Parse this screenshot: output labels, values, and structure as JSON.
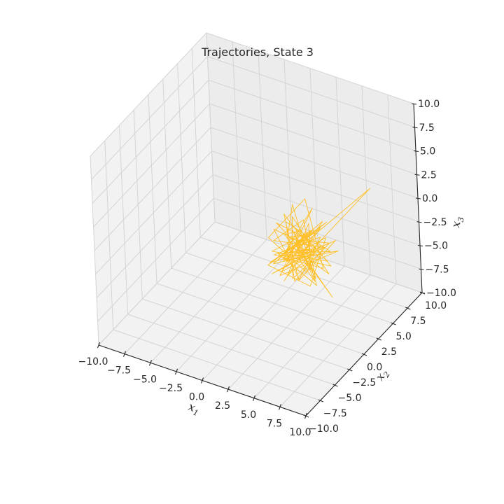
{
  "chart_data": {
    "type": "line3d",
    "title": "Trajectories, State 3",
    "xlabel": "x",
    "xlabel_sub": "1",
    "ylabel": "x",
    "ylabel_sub": "2",
    "zlabel": "x",
    "zlabel_sub": "3",
    "xlim": [
      -10,
      10
    ],
    "ylim": [
      -10,
      10
    ],
    "zlim": [
      -10,
      10
    ],
    "ticks": [
      -10,
      -7.5,
      -5,
      -2.5,
      0,
      2.5,
      5,
      7.5,
      10
    ],
    "tick_labels": [
      "−10.0",
      "−7.5",
      "−5.0",
      "−2.5",
      "0.0",
      "2.5",
      "5.0",
      "7.5",
      "10.0"
    ],
    "grid": true,
    "series": [
      {
        "color": "#ffbf24",
        "points": [
          [
            1.4,
            2.1,
            -3.9
          ],
          [
            2.6,
            1.0,
            -2.0
          ],
          [
            0.8,
            2.9,
            -5.2
          ],
          [
            3.5,
            3.4,
            -1.5
          ],
          [
            1.9,
            0.6,
            -4.7
          ],
          [
            4.2,
            2.3,
            -3.1
          ],
          [
            0.5,
            3.8,
            -1.2
          ],
          [
            2.9,
            1.7,
            -6.0
          ],
          [
            3.8,
            4.1,
            -2.6
          ],
          [
            1.1,
            0.9,
            -3.4
          ],
          [
            4.6,
            3.0,
            -4.9
          ],
          [
            2.2,
            4.5,
            0.6
          ],
          [
            0.3,
            1.4,
            -2.2
          ],
          [
            3.2,
            2.6,
            -5.6
          ],
          [
            4.9,
            1.2,
            -1.9
          ],
          [
            1.6,
            3.6,
            -4.1
          ],
          [
            2.7,
            0.2,
            -2.9
          ],
          [
            5.3,
            4.4,
            -3.7
          ],
          [
            0.9,
            2.0,
            -6.4
          ],
          [
            3.6,
            3.3,
            0.9
          ],
          [
            2.0,
            1.1,
            -3.0
          ],
          [
            4.3,
            4.8,
            -4.4
          ],
          [
            1.3,
            2.7,
            -1.0
          ],
          [
            3.1,
            0.7,
            -5.3
          ],
          [
            5.0,
            3.5,
            -2.4
          ],
          [
            0.6,
            4.0,
            -3.9
          ],
          [
            2.5,
            1.9,
            1.8
          ],
          [
            4.0,
            2.8,
            -6.8
          ],
          [
            1.8,
            0.4,
            -2.7
          ],
          [
            3.9,
            4.6,
            -4.0
          ],
          [
            0.2,
            2.4,
            -3.2
          ],
          [
            2.8,
            3.1,
            -0.5
          ],
          [
            4.7,
            1.5,
            -5.0
          ],
          [
            1.5,
            3.9,
            -3.6
          ],
          [
            3.4,
            0.9,
            -2.1
          ],
          [
            5.6,
            2.2,
            -4.6
          ],
          [
            1.0,
            4.3,
            -1.6
          ],
          [
            2.4,
            1.6,
            -5.9
          ],
          [
            4.4,
            3.7,
            -3.3
          ],
          [
            0.7,
            0.8,
            -4.3
          ],
          [
            3.0,
            4.9,
            -2.8
          ],
          [
            4.8,
            2.5,
            -0.2
          ],
          [
            1.7,
            1.3,
            -6.2
          ],
          [
            2.9,
            3.6,
            -3.5
          ],
          [
            0.4,
            2.2,
            -1.8
          ],
          [
            3.7,
            0.5,
            -4.8
          ],
          [
            5.2,
            4.2,
            -2.5
          ],
          [
            1.2,
            3.0,
            -5.4
          ],
          [
            2.3,
            1.8,
            -3.0
          ],
          [
            4.1,
            4.7,
            -1.3
          ],
          [
            0.8,
            0.3,
            -4.2
          ],
          [
            3.3,
            2.9,
            -7.2
          ],
          [
            4.5,
            3.8,
            -2.2
          ],
          [
            1.9,
            1.0,
            -3.8
          ],
          [
            7.6,
            6.2,
            2.6
          ],
          [
            3.5,
            2.4,
            -3.4
          ],
          [
            1.4,
            3.2,
            -4.5
          ],
          [
            2.6,
            0.6,
            -1.4
          ],
          [
            4.3,
            2.0,
            -5.7
          ],
          [
            0.9,
            4.4,
            -3.1
          ],
          [
            3.8,
            1.4,
            -2.6
          ],
          [
            2.1,
            3.5,
            -4.9
          ],
          [
            4.9,
            2.7,
            0.4
          ],
          [
            1.6,
            0.7,
            -3.6
          ],
          [
            2.8,
            4.1,
            -2.3
          ],
          [
            0.5,
            1.7,
            -5.1
          ],
          [
            3.6,
            3.2,
            -3.9
          ],
          [
            5.1,
            0.9,
            -1.7
          ],
          [
            1.3,
            2.6,
            -6.6
          ],
          [
            2.4,
            4.6,
            -2.0
          ],
          [
            4.2,
            1.6,
            -4.3
          ],
          [
            0.7,
            3.4,
            -3.0
          ],
          [
            3.1,
            2.1,
            -0.9
          ],
          [
            4.6,
            4.3,
            -5.5
          ],
          [
            1.8,
            0.5,
            -2.9
          ],
          [
            2.7,
            2.8,
            -4.1
          ],
          [
            6.5,
            1.1,
            -6.0
          ],
          [
            1.1,
            3.7,
            -3.3
          ],
          [
            3.4,
            1.9,
            -1.1
          ],
          [
            2.0,
            4.0,
            -4.7
          ],
          [
            4.4,
            2.4,
            -2.7
          ],
          [
            0.6,
            1.2,
            -5.8
          ],
          [
            3.9,
            3.9,
            -3.4
          ],
          [
            1.5,
            0.8,
            0.2
          ],
          [
            2.9,
            3.0,
            -4.0
          ],
          [
            4.0,
            2.0,
            -2.4
          ],
          [
            1.2,
            4.5,
            -5.3
          ],
          [
            3.3,
            1.5,
            -3.7
          ],
          [
            2.2,
            2.9,
            -1.6
          ],
          [
            4.7,
            3.6,
            -4.5
          ],
          [
            0.9,
            0.9,
            -3.1
          ],
          [
            3.0,
            4.2,
            -2.2
          ],
          [
            2.5,
            2.3,
            -3.5
          ]
        ]
      }
    ]
  }
}
